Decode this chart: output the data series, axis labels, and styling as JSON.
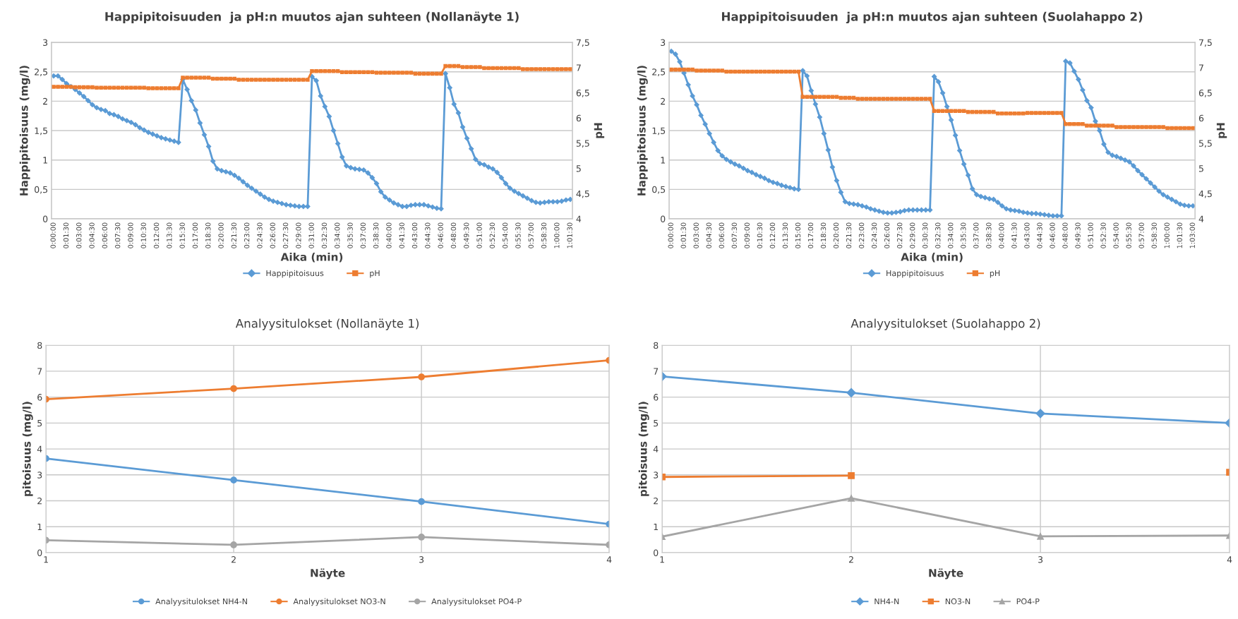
{
  "chart_data": [
    {
      "type": "line",
      "title": "Happipitoisuuden  ja pH:n muutos ajan suhteen (Nollanäyte 1)",
      "xlabel": "Aika (min)",
      "ylabel": "Happipitoisuus (mg/l)",
      "y2label": "pH",
      "categories": [
        "0:00:00",
        null,
        null,
        "0:01:30",
        null,
        null,
        "0:03:00",
        null,
        null,
        "0:04:30",
        null,
        null,
        "0:06:00",
        null,
        null,
        "0:07:30",
        null,
        null,
        "0:09:00",
        null,
        null,
        "0:10:30",
        null,
        null,
        "0:12:00",
        null,
        null,
        "0:13:30",
        null,
        null,
        "0:15:30",
        null,
        null,
        "0:17:00",
        null,
        null,
        "0:18:30",
        null,
        null,
        "0:20:00",
        null,
        null,
        "0:21:30",
        null,
        null,
        "0:23:00",
        null,
        null,
        "0:24:30",
        null,
        null,
        "0:26:00",
        null,
        null,
        "0:27:30",
        null,
        null,
        "0:29:00",
        null,
        null,
        "0:31:00",
        null,
        null,
        "0:32:30",
        null,
        null,
        "0:34:00",
        null,
        null,
        "0:35:30",
        null,
        null,
        "0:37:00",
        null,
        null,
        "0:38:30",
        null,
        null,
        "0:40:00",
        null,
        null,
        "0:41:30",
        null,
        null,
        "0:43:00",
        null,
        null,
        "0:44:30",
        null,
        null,
        "0:46:00",
        null,
        null,
        "0:48:00",
        null,
        null,
        "0:49:30",
        null,
        null,
        "0:51:00",
        null,
        null,
        "0:52:30",
        null,
        null,
        "0:54:00",
        null,
        null,
        "0:55:30",
        null,
        null,
        "0:57:00",
        null,
        null,
        "0:58:30",
        null,
        null,
        "1:00:00",
        null,
        null,
        "1:01:30"
      ],
      "series": [
        {
          "name": "Happipitoisuus",
          "color": "#5b9bd5",
          "marker": "diamond",
          "values": [
            2.43,
            2.43,
            2.37,
            2.3,
            2.25,
            2.2,
            2.14,
            2.08,
            2.01,
            1.94,
            1.89,
            1.86,
            1.84,
            1.79,
            1.77,
            1.74,
            1.7,
            1.67,
            1.64,
            1.6,
            1.55,
            1.51,
            1.47,
            1.44,
            1.41,
            1.38,
            1.36,
            1.34,
            1.32,
            1.3,
            2.37,
            2.2,
            2.01,
            1.85,
            1.63,
            1.43,
            1.23,
            0.98,
            0.85,
            0.82,
            0.8,
            0.78,
            0.74,
            0.69,
            0.63,
            0.57,
            0.52,
            0.47,
            0.42,
            0.37,
            0.33,
            0.3,
            0.28,
            0.26,
            0.24,
            0.23,
            0.22,
            0.21,
            0.21,
            0.21,
            2.42,
            2.35,
            2.09,
            1.91,
            1.74,
            1.5,
            1.28,
            1.05,
            0.9,
            0.87,
            0.85,
            0.84,
            0.83,
            0.78,
            0.7,
            0.6,
            0.46,
            0.37,
            0.32,
            0.27,
            0.24,
            0.21,
            0.21,
            0.23,
            0.24,
            0.24,
            0.24,
            0.22,
            0.2,
            0.18,
            0.17,
            2.47,
            2.23,
            1.95,
            1.8,
            1.56,
            1.37,
            1.19,
            1.01,
            0.94,
            0.92,
            0.88,
            0.85,
            0.79,
            0.7,
            0.6,
            0.52,
            0.47,
            0.43,
            0.39,
            0.35,
            0.31,
            0.28,
            0.27,
            0.28,
            0.29,
            0.29,
            0.29,
            0.3,
            0.32,
            0.33
          ]
        },
        {
          "name": "pH",
          "color": "#ed7d31",
          "marker": "square",
          "axis": "y2",
          "values": [
            6.62,
            6.62,
            6.62,
            6.62,
            6.62,
            6.61,
            6.61,
            6.61,
            6.61,
            6.61,
            6.6,
            6.6,
            6.6,
            6.6,
            6.6,
            6.6,
            6.6,
            6.6,
            6.6,
            6.6,
            6.6,
            6.6,
            6.59,
            6.59,
            6.59,
            6.59,
            6.59,
            6.59,
            6.59,
            6.59,
            6.8,
            6.8,
            6.8,
            6.8,
            6.8,
            6.8,
            6.8,
            6.78,
            6.78,
            6.78,
            6.78,
            6.78,
            6.78,
            6.76,
            6.76,
            6.76,
            6.76,
            6.76,
            6.76,
            6.76,
            6.76,
            6.76,
            6.76,
            6.76,
            6.76,
            6.76,
            6.76,
            6.76,
            6.76,
            6.76,
            6.93,
            6.93,
            6.93,
            6.93,
            6.93,
            6.93,
            6.93,
            6.91,
            6.91,
            6.91,
            6.91,
            6.91,
            6.91,
            6.91,
            6.91,
            6.9,
            6.9,
            6.9,
            6.9,
            6.9,
            6.9,
            6.9,
            6.9,
            6.9,
            6.88,
            6.88,
            6.88,
            6.88,
            6.88,
            6.88,
            6.88,
            7.03,
            7.03,
            7.03,
            7.03,
            7.01,
            7.01,
            7.01,
            7.01,
            7.01,
            6.99,
            6.99,
            6.99,
            6.99,
            6.99,
            6.99,
            6.99,
            6.99,
            6.99,
            6.97,
            6.97,
            6.97,
            6.97,
            6.97,
            6.97,
            6.97,
            6.97,
            6.97,
            6.97,
            6.97,
            6.97
          ]
        }
      ],
      "ylim": [
        0,
        3
      ],
      "yticks": [
        0,
        {
          "value": 0.5,
          "label": "0,5"
        },
        1,
        {
          "value": 1.5,
          "label": "1,5"
        },
        2,
        {
          "value": 2.5,
          "label": "2,5"
        },
        3
      ],
      "y2lim": [
        4,
        7.5
      ],
      "y2ticks": [
        4,
        {
          "value": 4.5,
          "label": "4,5"
        },
        5,
        {
          "value": 5.5,
          "label": "5,5"
        },
        6,
        {
          "value": 6.5,
          "label": "6,5"
        },
        7,
        {
          "value": 7.5,
          "label": "7,5"
        }
      ],
      "grid": "y",
      "legend": "bottom"
    },
    {
      "type": "line",
      "title": "Happipitoisuuden  ja pH:n muutos ajan suhteen (Suolahappo 2)",
      "xlabel": "Aika (min)",
      "ylabel": "Happipitoisuus (mg/l)",
      "y2label": "pH",
      "categories": [
        "0:00:00",
        null,
        null,
        "0:01:30",
        null,
        null,
        "0:03:00",
        null,
        null,
        "0:04:30",
        null,
        null,
        "0:06:00",
        null,
        null,
        "0:07:30",
        null,
        null,
        "0:09:00",
        null,
        null,
        "0:10:30",
        null,
        null,
        "0:12:00",
        null,
        null,
        "0:13:30",
        null,
        null,
        "0:15:00",
        null,
        null,
        "0:17:00",
        null,
        null,
        "0:18:30",
        null,
        null,
        "0:20:00",
        null,
        null,
        "0:21:30",
        null,
        null,
        "0:23:00",
        null,
        null,
        "0:24:30",
        null,
        null,
        "0:26:00",
        null,
        null,
        "0:27:30",
        null,
        null,
        "0:29:00",
        null,
        null,
        "0:30:30",
        null,
        null,
        "0:32:30",
        null,
        null,
        "0:34:00",
        null,
        null,
        "0:35:30",
        null,
        null,
        "0:37:00",
        null,
        null,
        "0:38:30",
        null,
        null,
        "0:40:00",
        null,
        null,
        "0:41:30",
        null,
        null,
        "0:43:00",
        null,
        null,
        "0:44:30",
        null,
        null,
        "0:46:00",
        null,
        null,
        "0:48:00",
        null,
        null,
        "0:49:30",
        null,
        null,
        "0:51:00",
        null,
        null,
        "0:52:30",
        null,
        null,
        "0:54:00",
        null,
        null,
        "0:55:30",
        null,
        null,
        "0:57:00",
        null,
        null,
        "0:58:30",
        null,
        null,
        "1:00:00",
        null,
        null,
        "1:01:30",
        null,
        null,
        "1:03:00"
      ],
      "series": [
        {
          "name": "Happipitoisuus",
          "color": "#5b9bd5",
          "marker": "diamond",
          "values": [
            2.85,
            2.8,
            2.67,
            2.48,
            2.28,
            2.09,
            1.94,
            1.76,
            1.61,
            1.45,
            1.3,
            1.16,
            1.07,
            1.01,
            0.97,
            0.93,
            0.9,
            0.86,
            0.82,
            0.79,
            0.75,
            0.72,
            0.69,
            0.65,
            0.62,
            0.6,
            0.57,
            0.55,
            0.53,
            0.51,
            0.5,
            2.52,
            2.43,
            2.18,
            1.95,
            1.73,
            1.45,
            1.17,
            0.88,
            0.65,
            0.45,
            0.29,
            0.26,
            0.25,
            0.24,
            0.22,
            0.2,
            0.17,
            0.15,
            0.13,
            0.11,
            0.1,
            0.1,
            0.11,
            0.12,
            0.14,
            0.15,
            0.15,
            0.15,
            0.15,
            0.15,
            0.15,
            2.42,
            2.33,
            2.14,
            1.91,
            1.68,
            1.42,
            1.16,
            0.93,
            0.74,
            0.51,
            0.41,
            0.38,
            0.36,
            0.34,
            0.33,
            0.28,
            0.22,
            0.17,
            0.15,
            0.14,
            0.13,
            0.11,
            0.1,
            0.09,
            0.09,
            0.08,
            0.07,
            0.06,
            0.05,
            0.05,
            0.05,
            2.68,
            2.65,
            2.51,
            2.37,
            2.19,
            2.01,
            1.89,
            1.66,
            1.5,
            1.27,
            1.13,
            1.08,
            1.06,
            1.03,
            1.0,
            0.97,
            0.9,
            0.82,
            0.75,
            0.68,
            0.61,
            0.54,
            0.47,
            0.41,
            0.37,
            0.33,
            0.29,
            0.25,
            0.23,
            0.22,
            0.22
          ]
        },
        {
          "name": "pH",
          "color": "#ed7d31",
          "marker": "square",
          "axis": "y2",
          "values": [
            6.96,
            6.96,
            6.96,
            6.96,
            6.96,
            6.96,
            6.94,
            6.94,
            6.94,
            6.94,
            6.94,
            6.94,
            6.94,
            6.92,
            6.92,
            6.92,
            6.92,
            6.92,
            6.92,
            6.92,
            6.92,
            6.92,
            6.92,
            6.92,
            6.92,
            6.92,
            6.92,
            6.92,
            6.92,
            6.92,
            6.92,
            6.42,
            6.42,
            6.42,
            6.42,
            6.42,
            6.42,
            6.42,
            6.42,
            6.42,
            6.4,
            6.4,
            6.4,
            6.4,
            6.38,
            6.38,
            6.38,
            6.38,
            6.38,
            6.38,
            6.38,
            6.38,
            6.38,
            6.38,
            6.38,
            6.38,
            6.38,
            6.38,
            6.38,
            6.38,
            6.38,
            6.38,
            6.14,
            6.14,
            6.14,
            6.14,
            6.14,
            6.14,
            6.14,
            6.14,
            6.12,
            6.12,
            6.12,
            6.12,
            6.12,
            6.12,
            6.12,
            6.09,
            6.09,
            6.09,
            6.09,
            6.09,
            6.09,
            6.09,
            6.1,
            6.1,
            6.1,
            6.1,
            6.1,
            6.1,
            6.1,
            6.1,
            6.1,
            5.88,
            5.88,
            5.88,
            5.88,
            5.88,
            5.85,
            5.85,
            5.85,
            5.85,
            5.85,
            5.85,
            5.85,
            5.82,
            5.82,
            5.82,
            5.82,
            5.82,
            5.82,
            5.82,
            5.82,
            5.82,
            5.82,
            5.82,
            5.82,
            5.8,
            5.8,
            5.8,
            5.8,
            5.8,
            5.8,
            5.8
          ]
        }
      ],
      "ylim": [
        0,
        3
      ],
      "yticks": [
        0,
        {
          "value": 0.5,
          "label": "0,5"
        },
        1,
        {
          "value": 1.5,
          "label": "1,5"
        },
        2,
        {
          "value": 2.5,
          "label": "2,5"
        },
        3
      ],
      "y2lim": [
        4,
        7.5
      ],
      "y2ticks": [
        4,
        {
          "value": 4.5,
          "label": "4,5"
        },
        5,
        {
          "value": 5.5,
          "label": "5,5"
        },
        6,
        {
          "value": 6.5,
          "label": "6,5"
        },
        7,
        {
          "value": 7.5,
          "label": "7,5"
        }
      ],
      "grid": "y",
      "legend": "bottom"
    },
    {
      "type": "line",
      "title": "Analyysitulokset (Nollanäyte 1)",
      "xlabel": "Näyte",
      "ylabel": "pitoisuus (mg/l)",
      "categories": [
        "1",
        "2",
        "3",
        "4"
      ],
      "series": [
        {
          "name": "Analyysitulokset NH4-N",
          "color": "#5b9bd5",
          "marker": "circle",
          "values": [
            3.63,
            2.8,
            1.97,
            1.1
          ]
        },
        {
          "name": "Analyysitulokset NO3-N",
          "color": "#ed7d31",
          "marker": "circle",
          "values": [
            5.92,
            6.33,
            6.78,
            7.42
          ]
        },
        {
          "name": "Analyysitulokset PO4-P",
          "color": "#a5a5a5",
          "marker": "circle",
          "values": [
            0.48,
            0.3,
            0.6,
            0.3
          ]
        }
      ],
      "ylim": [
        0,
        8
      ],
      "yticks": [
        0,
        1,
        2,
        3,
        4,
        5,
        6,
        7,
        8
      ],
      "grid": true,
      "legend": "bottom"
    },
    {
      "type": "line",
      "title": "Analyysitulokset (Suolahappo 2)",
      "xlabel": "Näyte",
      "ylabel": "pitoisuus (mg/l)",
      "categories": [
        "1",
        "2",
        "3",
        "4"
      ],
      "series": [
        {
          "name": "NH4-N",
          "color": "#5b9bd5",
          "marker": "diamond",
          "values": [
            6.8,
            6.17,
            5.37,
            5.0
          ]
        },
        {
          "name": "NO3-N",
          "color": "#ed7d31",
          "marker": "square",
          "values": [
            2.92,
            2.97,
            null,
            3.1
          ]
        },
        {
          "name": "PO4-P",
          "color": "#a5a5a5",
          "marker": "triangle",
          "values": [
            0.62,
            2.1,
            0.63,
            0.66
          ]
        }
      ],
      "ylim": [
        0,
        8
      ],
      "yticks": [
        0,
        1,
        2,
        3,
        4,
        5,
        6,
        7,
        8
      ],
      "grid": true,
      "legend": "bottom"
    }
  ]
}
